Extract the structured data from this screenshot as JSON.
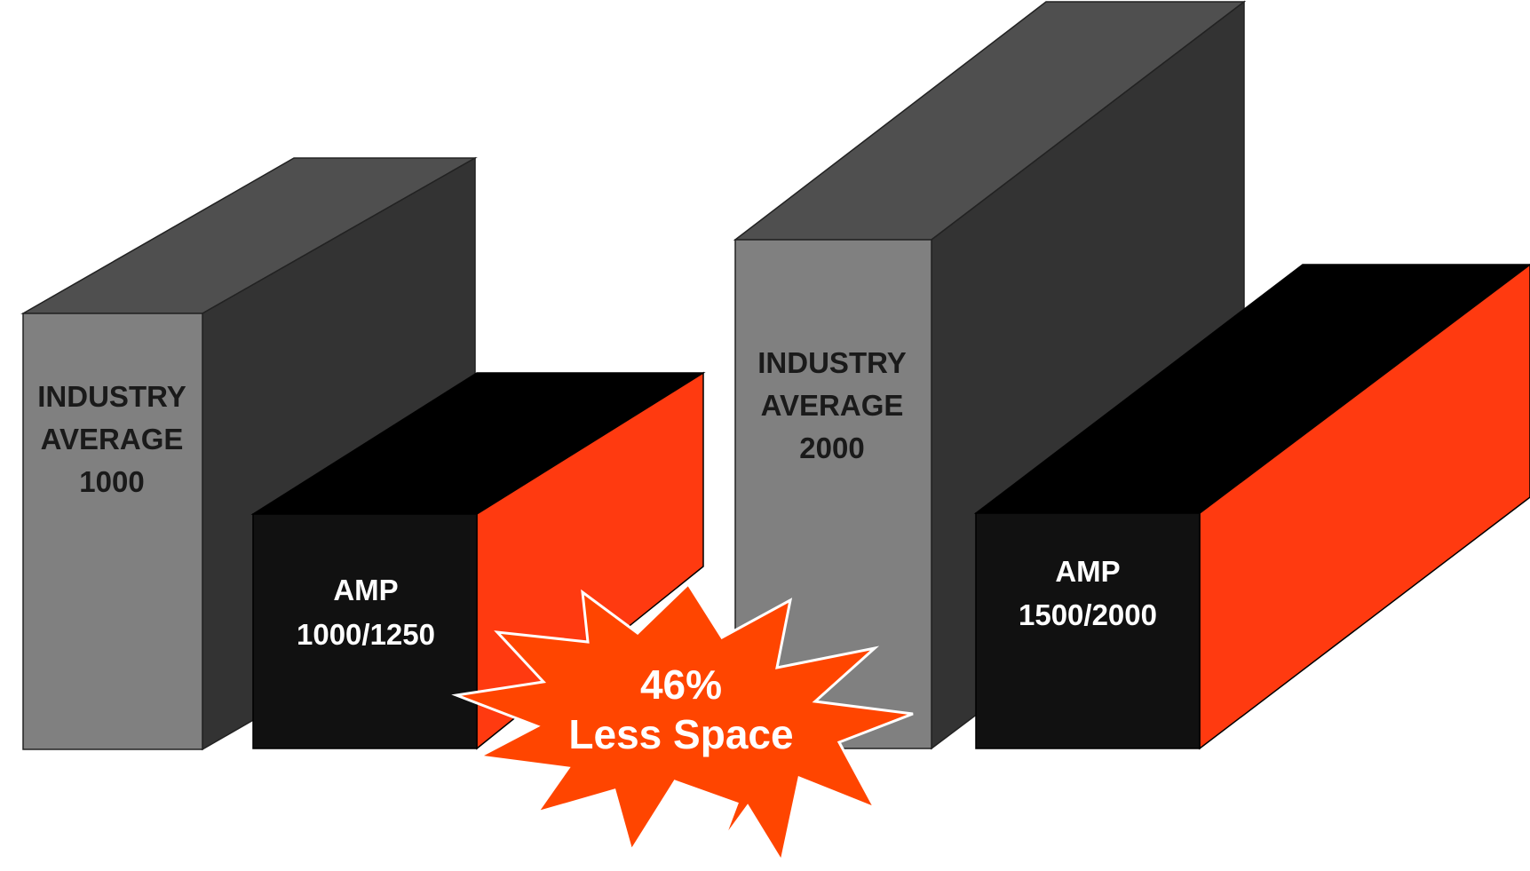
{
  "boxes": {
    "industry_1000": {
      "line1": "INDUSTRY",
      "line2": "AVERAGE",
      "line3": "1000"
    },
    "amp_1000_1250": {
      "line1": "AMP",
      "line2": "1000/1250"
    },
    "industry_2000": {
      "line1": "INDUSTRY",
      "line2": "AVERAGE",
      "line3": "2000"
    },
    "amp_1500_2000": {
      "line1": "AMP",
      "line2": "1500/2000"
    }
  },
  "burst": {
    "line1": "46%",
    "line2": "Less Space"
  },
  "colors": {
    "industry_front": "#808080",
    "industry_top": "#4f4f4f",
    "industry_side": "#333333",
    "amp_front": "#111111",
    "amp_top": "#000000",
    "amp_side": "#ff3a10",
    "burst_fill": "#ff4500",
    "burst_stroke": "#ffffff"
  }
}
